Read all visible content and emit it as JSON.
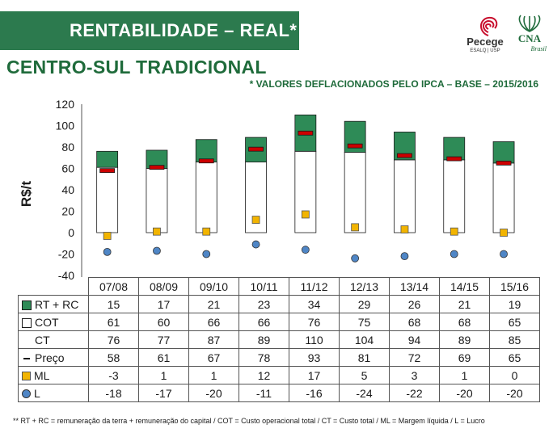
{
  "header": {
    "title": "RENTABILIDADE – REAL*"
  },
  "logos": {
    "pecege": {
      "name": "Pecege",
      "sub": "ESALQ | USP"
    },
    "cna": {
      "name": "CNA",
      "sub": "Brasil"
    }
  },
  "subtitle": "CENTRO-SUL TRADICIONAL",
  "note": "* VALORES DEFLACIONADOS PELO IPCA – BASE – 2015/2016",
  "colors": {
    "rt_rc": "#2e8b57",
    "cot": "#ffffff",
    "preco": "#cc0000",
    "ml": "#f2b400",
    "l": "#4f86c6",
    "header": "#2c7a4e"
  },
  "chart_data": {
    "type": "bar",
    "ylabel": "R$/t",
    "ylim": [
      -40,
      120
    ],
    "yticks": [
      -40,
      -20,
      0,
      20,
      40,
      60,
      80,
      100,
      120
    ],
    "categories": [
      "07/08",
      "08/09",
      "09/10",
      "10/11",
      "11/12",
      "12/13",
      "13/14",
      "14/15",
      "15/16"
    ],
    "series": [
      {
        "name": "RT + RC",
        "values": [
          15,
          17,
          21,
          23,
          34,
          29,
          26,
          21,
          19
        ]
      },
      {
        "name": "COT",
        "values": [
          61,
          60,
          66,
          66,
          76,
          75,
          68,
          68,
          65
        ]
      },
      {
        "name": "CT",
        "values": [
          76,
          77,
          87,
          89,
          110,
          104,
          94,
          89,
          85
        ]
      },
      {
        "name": "Preço",
        "values": [
          58,
          61,
          67,
          78,
          93,
          81,
          72,
          69,
          65
        ]
      },
      {
        "name": "ML",
        "values": [
          -3,
          1,
          1,
          12,
          17,
          5,
          3,
          1,
          0
        ]
      },
      {
        "name": "L",
        "values": [
          -18,
          -17,
          -20,
          -11,
          -16,
          -24,
          -22,
          -20,
          -20
        ]
      }
    ],
    "grid": false
  },
  "footnote": "** RT + RC = remuneração da terra + remuneração do capital / COT = Custo operacional total / CT = Custo total / ML = Margem líquida / L = Lucro"
}
